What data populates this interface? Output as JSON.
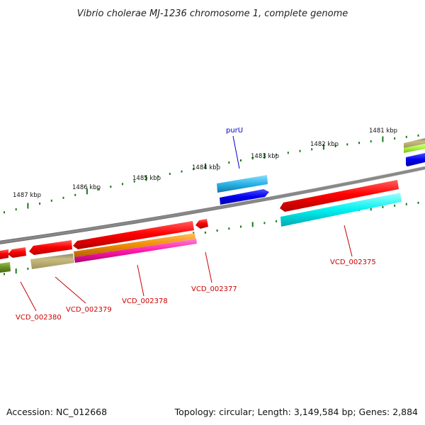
{
  "title": "Vibrio cholerae MJ-1236 chromosome 1, complete genome",
  "footer": {
    "accession": "Accession: NC_012668",
    "stats": "Topology: circular; Length: 3,149,584 bp; Genes: 2,884"
  },
  "scale_labels": [
    "1481 kbp",
    "1482 kbp",
    "1483 kbp",
    "1484 kbp",
    "1485 kbp",
    "1486 kbp",
    "1487 kbp"
  ],
  "gene_labels": [
    {
      "id": "purU",
      "color": "#0000cc"
    },
    {
      "id": "VCD_002375",
      "color": "#cc0000"
    },
    {
      "id": "VCD_002377",
      "color": "#cc0000"
    },
    {
      "id": "VCD_002378",
      "color": "#cc0000"
    },
    {
      "id": "VCD_002379",
      "color": "#cc0000"
    },
    {
      "id": "VCD_002380",
      "color": "#cc0000"
    }
  ],
  "colors": {
    "backbone": "#808080",
    "ticks": "#1a7a1a",
    "gene_red": "#ff0000",
    "gene_cyan": "#00eeee",
    "gene_blue": "#0000ee",
    "gene_lightblue": "#29b6e8",
    "gene_orange": "#f08c00",
    "gene_magenta": "#ff1aa8",
    "gene_khaki": "#c2b57a",
    "gene_olive": "#6b8e23",
    "gene_lime": "#a8f040"
  }
}
